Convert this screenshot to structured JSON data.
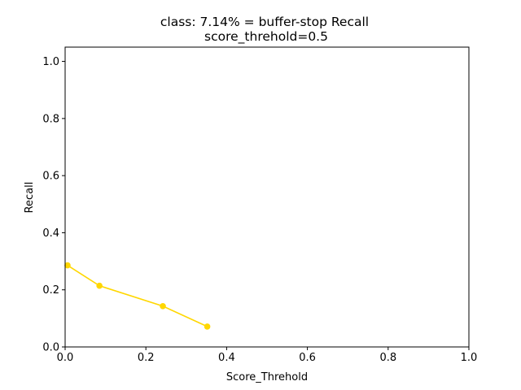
{
  "chart_data": {
    "type": "line",
    "title": "class: 7.14% = buffer-stop Recall",
    "subtitle": "score_threhold=0.5",
    "xlabel": "Score_Threhold",
    "ylabel": "Recall",
    "xlim": [
      0.0,
      1.0
    ],
    "ylim": [
      0.0,
      1.05
    ],
    "x_ticks": [
      "0.0",
      "0.2",
      "0.4",
      "0.6",
      "0.8",
      "1.0"
    ],
    "y_ticks": [
      "0.0",
      "0.2",
      "0.4",
      "0.6",
      "0.8",
      "1.0"
    ],
    "x_tick_values": [
      0.0,
      0.2,
      0.4,
      0.6,
      0.8,
      1.0
    ],
    "y_tick_values": [
      0.0,
      0.2,
      0.4,
      0.6,
      0.8,
      1.0
    ],
    "grid": false,
    "series": [
      {
        "color": "#ffd700",
        "marker": "circle",
        "x": [
          0.006,
          0.085,
          0.242,
          0.352
        ],
        "y": [
          0.2857,
          0.2143,
          0.1429,
          0.0714
        ]
      }
    ]
  }
}
